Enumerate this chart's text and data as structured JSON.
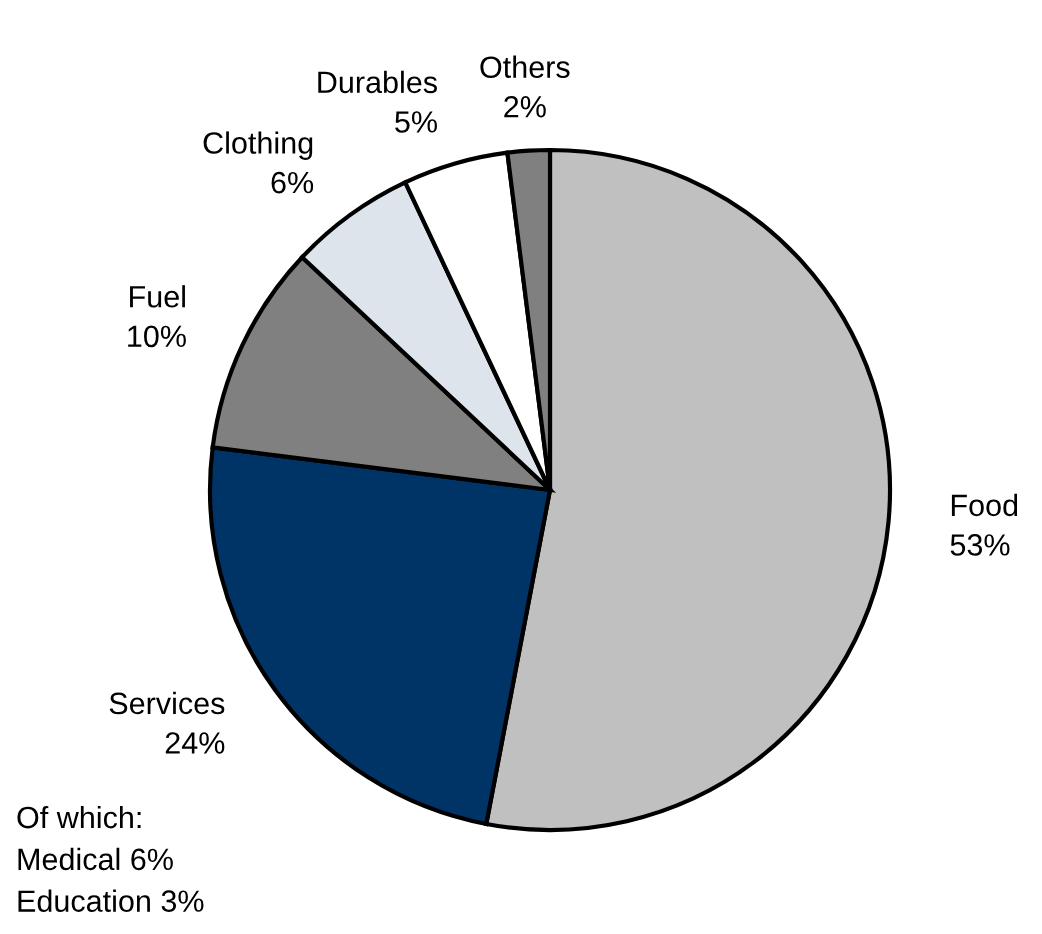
{
  "chart_data": {
    "type": "pie",
    "categories": [
      "Food",
      "Services",
      "Fuel",
      "Clothing",
      "Durables",
      "Others"
    ],
    "values": [
      53,
      24,
      10,
      6,
      5,
      2
    ],
    "value_labels": [
      "53%",
      "24%",
      "10%",
      "6%",
      "5%",
      "2%"
    ],
    "colors": [
      "#c0c0c0",
      "#003366",
      "#808080",
      "#dde4ec",
      "#ffffff",
      "#808080"
    ],
    "annotations": [
      "Of which:\nMedical 6%\nEducation 3%"
    ]
  }
}
